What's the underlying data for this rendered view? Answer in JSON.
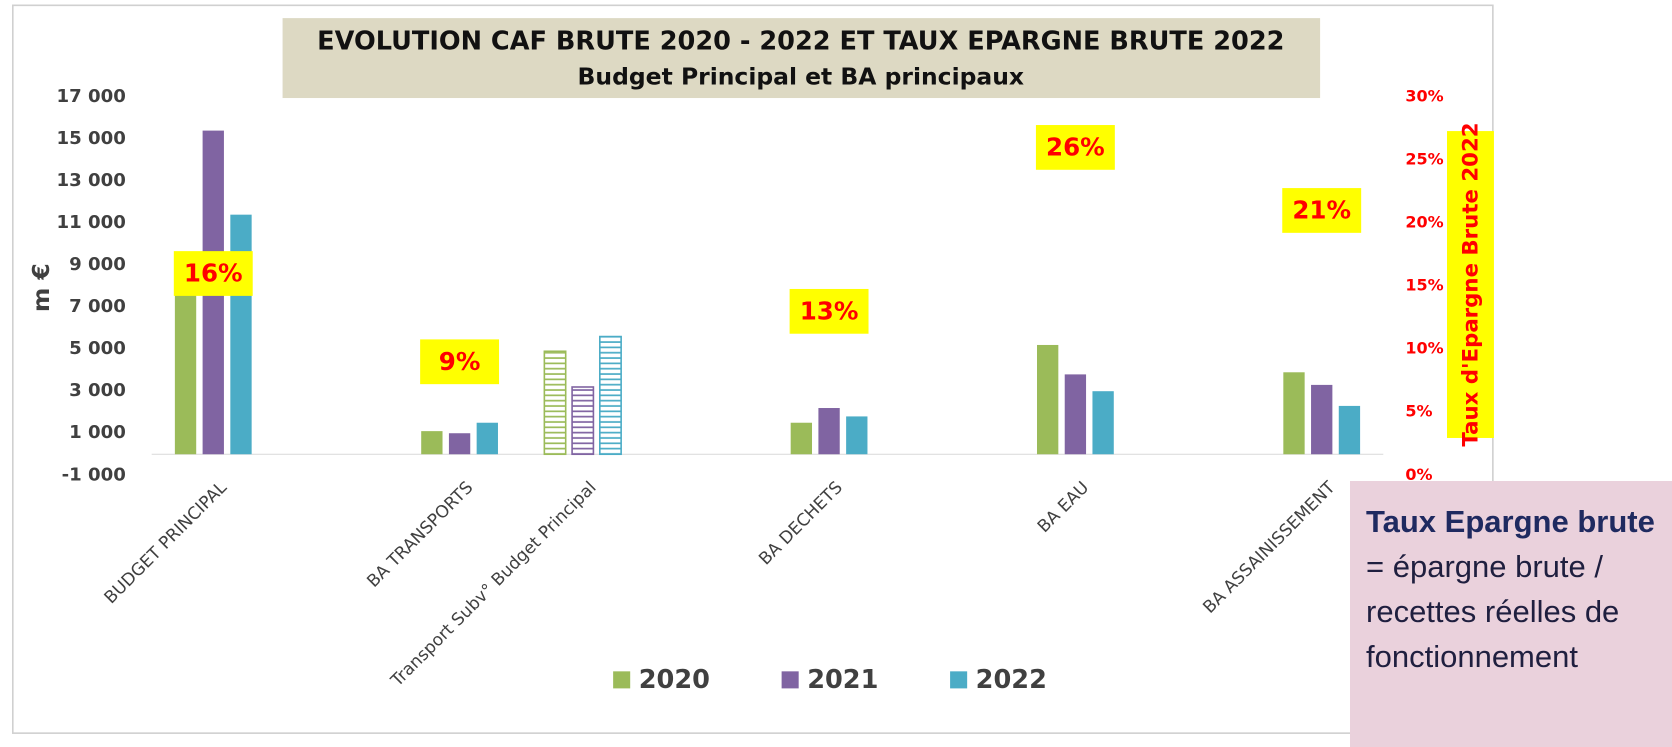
{
  "chart_data": {
    "type": "bar",
    "title": [
      "EVOLUTION CAF BRUTE 2020 - 2022 ET TAUX EPARGNE BRUTE 2022",
      "Budget Principal et BA principaux"
    ],
    "ylabel": "m €",
    "y2label": "Taux d'Epargne Brute 2022",
    "categories": [
      "BUDGET PRINCIPAL",
      null,
      "BA TRANSPORTS",
      "Transport Subv° Budget Principal",
      null,
      "BA DECHETS",
      null,
      "BA EAU",
      null,
      "BA ASSAINISSEMENT"
    ],
    "hatched": [
      false,
      false,
      false,
      true,
      false,
      false,
      false,
      false,
      false,
      false
    ],
    "series": [
      {
        "name": "2020",
        "color": "#9bbb59",
        "values": [
          8700,
          null,
          1100,
          4900,
          null,
          1500,
          null,
          5200,
          null,
          3900
        ]
      },
      {
        "name": "2021",
        "color": "#8064a2",
        "values": [
          15400,
          null,
          1000,
          3200,
          null,
          2200,
          null,
          3800,
          null,
          3300
        ]
      },
      {
        "name": "2022",
        "color": "#4bacc6",
        "values": [
          11400,
          null,
          1500,
          5600,
          null,
          1800,
          null,
          3000,
          null,
          2300
        ]
      }
    ],
    "rate_series": {
      "axis": "y2",
      "color": "#ff0000",
      "background": "#ffff00",
      "values": [
        16,
        null,
        9,
        null,
        null,
        13,
        null,
        26,
        null,
        21
      ],
      "value_labels": [
        "16%",
        null,
        "9%",
        null,
        null,
        "13%",
        null,
        "26%",
        null,
        "21%"
      ]
    },
    "ylim": [
      -1000,
      17000
    ],
    "yticks": [
      {
        "value": -1000,
        "label": "-1 000"
      },
      {
        "value": 1000,
        "label": "1 000"
      },
      {
        "value": 3000,
        "label": "3 000"
      },
      {
        "value": 5000,
        "label": "5 000"
      },
      {
        "value": 7000,
        "label": "7 000"
      },
      {
        "value": 9000,
        "label": "9 000"
      },
      {
        "value": 11000,
        "label": "11 000"
      },
      {
        "value": 13000,
        "label": "13 000"
      },
      {
        "value": 15000,
        "label": "15 000"
      },
      {
        "value": 17000,
        "label": "17 000"
      }
    ],
    "y2lim": [
      0,
      30
    ],
    "y2ticks": [
      {
        "value": 0,
        "label": "0%"
      },
      {
        "value": 5,
        "label": "5%"
      },
      {
        "value": 10,
        "label": "10%"
      },
      {
        "value": 15,
        "label": "15%"
      },
      {
        "value": 20,
        "label": "20%"
      },
      {
        "value": 25,
        "label": "25%"
      },
      {
        "value": 30,
        "label": "30%"
      }
    ],
    "legend": "bottom"
  },
  "note": {
    "bold_1": "Taux Epargne",
    "bold_2": "brute",
    "text": "= épargne brute / recettes réelles de fonctionnement"
  }
}
